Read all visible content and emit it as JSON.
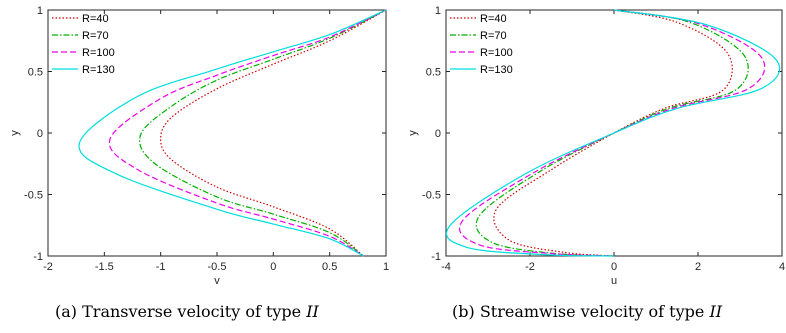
{
  "captions": [
    {
      "label": "(a)",
      "text": "Transverse velocity of type",
      "math": "II"
    },
    {
      "label": "(b)",
      "text": "Streamwise velocity of type",
      "math": "II"
    }
  ],
  "chart_data": [
    {
      "type": "line",
      "xlabel": "v",
      "ylabel": "y",
      "xlim": [
        -2,
        1
      ],
      "ylim": [
        -1,
        1
      ],
      "xticks": [
        "-2",
        "-1.5",
        "-1",
        "-0.5",
        "0",
        "0.5",
        "1"
      ],
      "yticks": [
        "-1",
        "-0.5",
        "0",
        "0.5",
        "1"
      ],
      "grid": false,
      "legend_position": "top-left",
      "series": [
        {
          "name": "R=40",
          "color": "#cc0000",
          "dash": "dotted",
          "points": [
            [
              1,
              1
            ],
            [
              0.5,
              0.75
            ],
            [
              0,
              0.56
            ],
            [
              -0.5,
              0.36
            ],
            [
              -0.9,
              0.13
            ],
            [
              -1.0,
              -0.05
            ],
            [
              -0.9,
              -0.22
            ],
            [
              -0.5,
              -0.44
            ],
            [
              0,
              -0.6
            ],
            [
              0.5,
              -0.78
            ],
            [
              0.8,
              -1
            ]
          ]
        },
        {
          "name": "R=70",
          "color": "#00b000",
          "dash": "dashdot",
          "points": [
            [
              1,
              1
            ],
            [
              0.5,
              0.77
            ],
            [
              0,
              0.6
            ],
            [
              -0.5,
              0.43
            ],
            [
              -0.9,
              0.22
            ],
            [
              -1.18,
              -0.02
            ],
            [
              -1.05,
              -0.25
            ],
            [
              -0.5,
              -0.52
            ],
            [
              0,
              -0.66
            ],
            [
              0.5,
              -0.81
            ],
            [
              0.8,
              -1
            ]
          ]
        },
        {
          "name": "R=100",
          "color": "#ee00ee",
          "dash": "dashed",
          "points": [
            [
              1,
              1
            ],
            [
              0.5,
              0.78
            ],
            [
              0,
              0.63
            ],
            [
              -0.5,
              0.47
            ],
            [
              -1.0,
              0.28
            ],
            [
              -1.45,
              -0.05
            ],
            [
              -1.2,
              -0.3
            ],
            [
              -0.5,
              -0.57
            ],
            [
              0,
              -0.7
            ],
            [
              0.5,
              -0.84
            ],
            [
              0.8,
              -1
            ]
          ]
        },
        {
          "name": "R=130",
          "color": "#00dddd",
          "dash": "solid",
          "points": [
            [
              1,
              1
            ],
            [
              0.5,
              0.8
            ],
            [
              0,
              0.66
            ],
            [
              -0.5,
              0.52
            ],
            [
              -1.2,
              0.3
            ],
            [
              -1.72,
              -0.08
            ],
            [
              -1.4,
              -0.33
            ],
            [
              -0.5,
              -0.62
            ],
            [
              0,
              -0.74
            ],
            [
              0.5,
              -0.86
            ],
            [
              0.8,
              -1
            ]
          ]
        }
      ]
    },
    {
      "type": "line",
      "xlabel": "u",
      "ylabel": "y",
      "xlim": [
        -4,
        4
      ],
      "ylim": [
        -1,
        1
      ],
      "xticks": [
        "-4",
        "-2",
        "0",
        "2",
        "4"
      ],
      "yticks": [
        "-1",
        "-0.5",
        "0",
        "0.5",
        "1"
      ],
      "grid": false,
      "legend_position": "top-left",
      "series": [
        {
          "name": "R=40",
          "color": "#cc0000",
          "dash": "dotted",
          "points": [
            [
              0,
              1
            ],
            [
              1.5,
              0.9
            ],
            [
              2.7,
              0.65
            ],
            [
              2.6,
              0.35
            ],
            [
              1.2,
              0.2
            ],
            [
              0,
              0
            ],
            [
              -1.5,
              -0.3
            ],
            [
              -2.8,
              -0.62
            ],
            [
              -2.5,
              -0.87
            ],
            [
              -1.2,
              -0.97
            ],
            [
              0,
              -1
            ]
          ]
        },
        {
          "name": "R=70",
          "color": "#00b000",
          "dash": "dashdot",
          "points": [
            [
              0,
              1
            ],
            [
              1.8,
              0.9
            ],
            [
              3.1,
              0.63
            ],
            [
              2.9,
              0.35
            ],
            [
              1.3,
              0.2
            ],
            [
              0,
              0
            ],
            [
              -1.7,
              -0.3
            ],
            [
              -3.2,
              -0.67
            ],
            [
              -2.9,
              -0.89
            ],
            [
              -1.4,
              -0.98
            ],
            [
              0,
              -1
            ]
          ]
        },
        {
          "name": "R=100",
          "color": "#ee00ee",
          "dash": "dashed",
          "points": [
            [
              0,
              1
            ],
            [
              2.0,
              0.89
            ],
            [
              3.5,
              0.62
            ],
            [
              3.2,
              0.36
            ],
            [
              1.4,
              0.2
            ],
            [
              0,
              0
            ],
            [
              -1.9,
              -0.32
            ],
            [
              -3.6,
              -0.71
            ],
            [
              -3.2,
              -0.91
            ],
            [
              -1.5,
              -0.98
            ],
            [
              0,
              -1
            ]
          ]
        },
        {
          "name": "R=130",
          "color": "#00dddd",
          "dash": "solid",
          "points": [
            [
              0,
              1
            ],
            [
              2.2,
              0.88
            ],
            [
              3.85,
              0.6
            ],
            [
              3.5,
              0.36
            ],
            [
              1.5,
              0.2
            ],
            [
              0,
              0
            ],
            [
              -2.1,
              -0.33
            ],
            [
              -3.9,
              -0.75
            ],
            [
              -3.5,
              -0.93
            ],
            [
              -1.6,
              -0.99
            ],
            [
              0,
              -1
            ]
          ]
        }
      ]
    }
  ]
}
